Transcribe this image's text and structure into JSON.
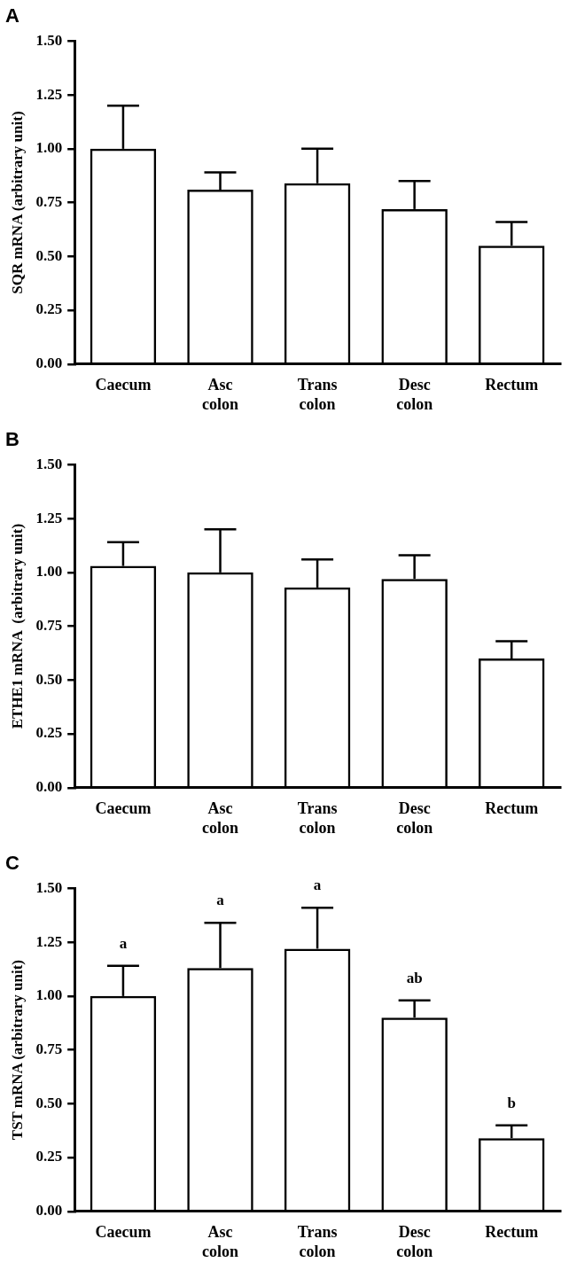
{
  "chart_data": [
    {
      "type": "bar",
      "title": "A",
      "ylabel": "SQR mRNA (arbitrary unit)",
      "categories": [
        "Caecum",
        "Asc colon",
        "Trans colon",
        "Desc colon",
        "Rectum"
      ],
      "values": [
        1.0,
        0.81,
        0.84,
        0.72,
        0.55
      ],
      "errors": [
        [
          1.0,
          1.2
        ],
        [
          0.81,
          0.89
        ],
        [
          0.84,
          1.0
        ],
        [
          0.72,
          0.85
        ],
        [
          0.55,
          0.66
        ]
      ],
      "color": "#000000",
      "ylim": [
        0,
        1.5
      ],
      "yticks": [
        {
          "value": 0,
          "label": "0.00"
        },
        {
          "value": 0.25,
          "label": "0.25"
        },
        {
          "value": 0.5,
          "label": "0.50"
        },
        {
          "value": 0.75,
          "label": "0.75"
        },
        {
          "value": 1,
          "label": "1.00"
        },
        {
          "value": 1.25,
          "label": "1.25"
        },
        {
          "value": 1.5,
          "label": "1.50"
        }
      ],
      "grid": false,
      "legend": false
    },
    {
      "type": "bar",
      "title": "B",
      "ylabel": "ETHE1 mRNA  (arbitrary unit)",
      "categories": [
        "Caecum",
        "Asc colon",
        "Trans colon",
        "Desc colon",
        "Rectum"
      ],
      "values": [
        1.03,
        1.0,
        0.93,
        0.97,
        0.6
      ],
      "errors": [
        [
          1.03,
          1.14
        ],
        [
          1.0,
          1.2
        ],
        [
          0.93,
          1.06
        ],
        [
          0.97,
          1.08
        ],
        [
          0.6,
          0.68
        ]
      ],
      "color": "#000000",
      "ylim": [
        0,
        1.5
      ],
      "yticks": [
        {
          "value": 0,
          "label": "0.00"
        },
        {
          "value": 0.25,
          "label": "0.25"
        },
        {
          "value": 0.5,
          "label": "0.50"
        },
        {
          "value": 0.75,
          "label": "0.75"
        },
        {
          "value": 1,
          "label": "1.00"
        },
        {
          "value": 1.25,
          "label": "1.25"
        },
        {
          "value": 1.5,
          "label": "1.50"
        }
      ],
      "grid": false,
      "legend": false
    },
    {
      "type": "bar",
      "title": "C",
      "ylabel": "TST mRNA (arbitrary unit)",
      "categories": [
        "Caecum",
        "Asc colon",
        "Trans colon",
        "Desc colon",
        "Rectum"
      ],
      "values": [
        1.0,
        1.13,
        1.22,
        0.9,
        0.34
      ],
      "errors": [
        [
          1.0,
          1.14
        ],
        [
          1.13,
          1.34
        ],
        [
          1.22,
          1.41
        ],
        [
          0.9,
          0.98
        ],
        [
          0.34,
          0.4
        ]
      ],
      "color": "#000000",
      "ylim": [
        0,
        1.5
      ],
      "yticks": [
        {
          "value": 0,
          "label": "0.00"
        },
        {
          "value": 0.25,
          "label": "0.25"
        },
        {
          "value": 0.5,
          "label": "0.50"
        },
        {
          "value": 0.75,
          "label": "0.75"
        },
        {
          "value": 1,
          "label": "1.00"
        },
        {
          "value": 1.25,
          "label": "1.25"
        },
        {
          "value": 1.5,
          "label": "1.50"
        }
      ],
      "grid": false,
      "legend": false,
      "annotations": [
        {
          "text": "a",
          "x": "Caecum",
          "y": 1.14
        },
        {
          "text": "a",
          "x": "Asc colon",
          "y": 1.34
        },
        {
          "text": "a",
          "x": "Trans colon",
          "y": 1.41
        },
        {
          "text": "ab",
          "x": "Desc colon",
          "y": 0.98
        },
        {
          "text": "b",
          "x": "Rectum",
          "y": 0.4
        }
      ]
    }
  ]
}
